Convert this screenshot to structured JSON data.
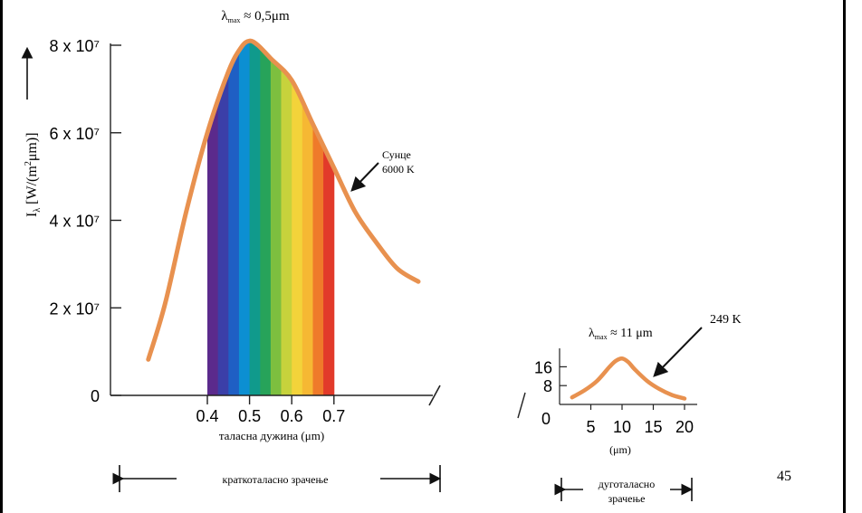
{
  "page_number": "45",
  "colors": {
    "curve": "#e8914f",
    "axis": "#222222",
    "spectrum": [
      "#5b2a8c",
      "#3b3fa8",
      "#1f5fc4",
      "#0c8fd2",
      "#109a8c",
      "#27a35a",
      "#7dbf3f",
      "#c7d23c",
      "#f3d33a",
      "#f6b833",
      "#ef7a2a",
      "#e23a2a"
    ]
  },
  "chart_data": [
    {
      "type": "line",
      "title": "λmax ≈ 0,5μm",
      "xlabel": "таласна дужина (μm)",
      "ylabel": "Iλ [W/(m²μm)]",
      "x_ticks": [
        "0.4",
        "0.5",
        "0.6",
        "0.7"
      ],
      "y_ticks": [
        "0",
        "2 x 10⁷",
        "4 x 10⁷",
        "6 x 10⁷",
        "8 x 10⁷"
      ],
      "ylim": [
        0,
        80000000
      ],
      "xlim": [
        0.2,
        1.0
      ],
      "series": [
        {
          "name": "Сунце 6000 K",
          "x": [
            0.26,
            0.3,
            0.35,
            0.4,
            0.45,
            0.48,
            0.5,
            0.52,
            0.55,
            0.6,
            0.65,
            0.7,
            0.75,
            0.8,
            0.85,
            0.9
          ],
          "values": [
            8200000,
            21000000,
            42000000,
            60000000,
            74000000,
            79500000,
            81000000,
            80000000,
            77000000,
            72000000,
            62000000,
            52000000,
            42000000,
            35000000,
            29000000,
            26000000
          ]
        }
      ],
      "annotation": "Сунце\n6000 K",
      "band_label": "краткоталасно зрачење"
    },
    {
      "type": "line",
      "title": "λmax ≈ 11 μm",
      "xlabel": "(μm)",
      "ylabel": "",
      "x_ticks": [
        "0",
        "5",
        "10",
        "15",
        "20"
      ],
      "y_ticks": [
        "8",
        "16"
      ],
      "xlim": [
        0,
        22
      ],
      "ylim": [
        0,
        24
      ],
      "series": [
        {
          "name": "249 K",
          "x": [
            2,
            4,
            6,
            8,
            9,
            10,
            11,
            12,
            14,
            16,
            18,
            20
          ],
          "values": [
            3,
            6,
            10,
            16,
            18.5,
            19.5,
            18,
            15,
            10,
            6.5,
            4,
            2.5
          ]
        }
      ],
      "annotation": "249 K",
      "band_label": "дуготаласно\nзрачење"
    }
  ]
}
